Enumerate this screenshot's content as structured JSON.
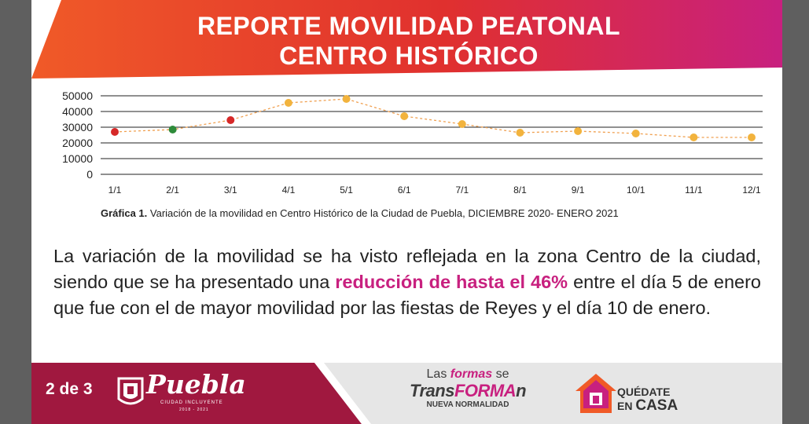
{
  "header": {
    "title_line1": "REPORTE MOVILIDAD PEATONAL",
    "title_line2": "CENTRO HISTÓRICO"
  },
  "chart_data": {
    "type": "line",
    "categories": [
      "1/1",
      "2/1",
      "3/1",
      "4/1",
      "5/1",
      "6/1",
      "7/1",
      "8/1",
      "9/1",
      "10/1",
      "11/1",
      "12/1"
    ],
    "values": [
      27000,
      28500,
      34500,
      45500,
      48000,
      37000,
      32000,
      26500,
      27500,
      26000,
      23500,
      23500
    ],
    "point_colors": [
      "#d62828",
      "#2e8b3a",
      "#d62828",
      "#f2b33d",
      "#f2b33d",
      "#f2b33d",
      "#f2b33d",
      "#f2b33d",
      "#f2b33d",
      "#f2b33d",
      "#f2b33d",
      "#f2b33d"
    ],
    "line_color": "#f0a050",
    "y_ticks": [
      "50000",
      "40000",
      "30000",
      "20000",
      "10000",
      "0"
    ],
    "ylim": [
      0,
      50000
    ],
    "grid": true
  },
  "caption": {
    "label": "Gráfica 1.",
    "text": "Variación de la movilidad en Centro Histórico de la Ciudad de Puebla, DICIEMBRE 2020- ENERO 2021"
  },
  "paragraph": {
    "part1": "La variación de la movilidad se ha visto reflejada en la zona Centro de la ciudad, siendo que se ha presentado una ",
    "highlight": "reducción de hasta el 46%",
    "part2": " entre el día 5 de enero que fue con el de mayor movilidad por las fiestas de Reyes y el día 10 de enero."
  },
  "footer": {
    "page": "2 de 3",
    "puebla_word": "Puebla",
    "puebla_sub": "CIUDAD INCLUYENTE",
    "puebla_years": "2018 - 2021",
    "slogan_pre": "Las ",
    "slogan_formas": "formas",
    "slogan_se": " se",
    "slogan_trans": "Trans",
    "slogan_forma": "FORMA",
    "slogan_n": "n",
    "slogan_sub": "NUEVA NORMALIDAD",
    "casa_line1": "QUÉDATE",
    "casa_en": "EN ",
    "casa_casa": "CASA"
  },
  "colors": {
    "banner_left": "#f05a28",
    "banner_right": "#c8207f",
    "footer_dark": "#a0183f",
    "highlight": "#c8207f"
  }
}
